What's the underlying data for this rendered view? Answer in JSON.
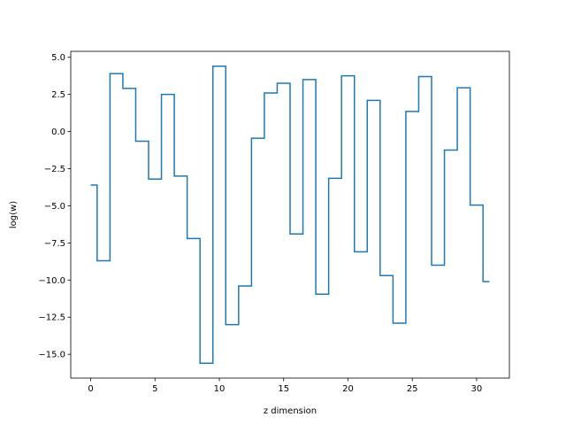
{
  "chart_data": {
    "type": "line",
    "drawstyle": "steps-mid",
    "title": "",
    "xlabel": "z dimension",
    "ylabel": "log(w)",
    "xlim": [
      -1.55,
      32.55
    ],
    "ylim": [
      -16.6,
      5.4
    ],
    "grid": false,
    "line_color": "#1f77b4",
    "x": [
      0,
      1,
      2,
      3,
      4,
      5,
      6,
      7,
      8,
      9,
      10,
      11,
      12,
      13,
      14,
      15,
      16,
      17,
      18,
      19,
      20,
      21,
      22,
      23,
      24,
      25,
      26,
      27,
      28,
      29,
      30,
      31
    ],
    "values": [
      -3.6,
      -8.7,
      3.9,
      2.9,
      -0.65,
      -3.2,
      2.5,
      -3.0,
      -7.2,
      -15.6,
      4.4,
      -13.0,
      -10.4,
      -0.45,
      2.6,
      3.25,
      -6.9,
      3.5,
      -10.95,
      -3.15,
      3.75,
      -8.1,
      2.1,
      -9.7,
      -12.9,
      1.35,
      3.7,
      -9.0,
      -1.25,
      2.95,
      -4.95,
      -10.1
    ],
    "xticks": [
      0,
      5,
      10,
      15,
      20,
      25,
      30
    ],
    "xtick_labels": [
      "0",
      "5",
      "10",
      "15",
      "20",
      "25",
      "30"
    ],
    "yticks": [
      5.0,
      2.5,
      0.0,
      -2.5,
      -5.0,
      -7.5,
      -10.0,
      -12.5,
      -15.0
    ],
    "ytick_labels": [
      "5.0",
      "2.5",
      "0.0",
      "−2.5",
      "−5.0",
      "−7.5",
      "−10.0",
      "−12.5",
      "−15.0"
    ]
  }
}
